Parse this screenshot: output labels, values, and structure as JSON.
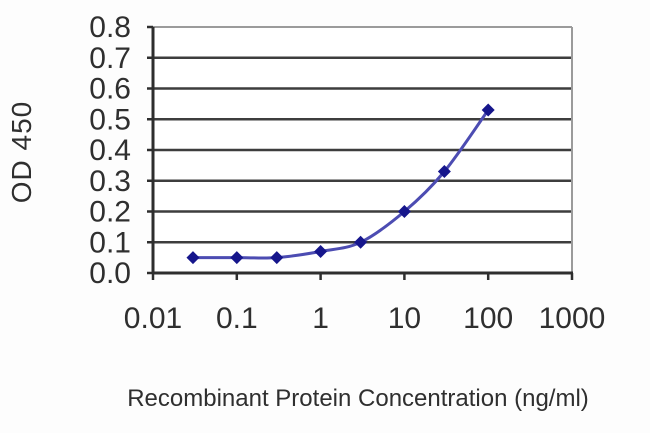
{
  "chart_data": {
    "type": "line",
    "title": "",
    "xlabel": "Recombinant Protein Concentration (ng/ml)",
    "ylabel": "OD 450",
    "x_scale": "log",
    "xlim": [
      0.01,
      1000
    ],
    "ylim": [
      0.0,
      0.8
    ],
    "x_tick_values": [
      0.01,
      0.1,
      1,
      10,
      100,
      1000
    ],
    "x_tick_labels": [
      "0.01",
      "0.1",
      "1",
      "10",
      "100",
      "1000"
    ],
    "y_tick_values": [
      0.0,
      0.1,
      0.2,
      0.3,
      0.4,
      0.5,
      0.6,
      0.7,
      0.8
    ],
    "y_tick_labels": [
      "0.0",
      "0.1",
      "0.2",
      "0.3",
      "0.4",
      "0.5",
      "0.6",
      "0.7",
      "0.8"
    ],
    "grid": "horizontal",
    "legend": "none",
    "series": [
      {
        "name": "OD 450",
        "marker": "diamond",
        "smooth": true,
        "points": [
          [
            0.03,
            0.05
          ],
          [
            0.1,
            0.05
          ],
          [
            0.3,
            0.05
          ],
          [
            1,
            0.07
          ],
          [
            3,
            0.1
          ],
          [
            10,
            0.2
          ],
          [
            30,
            0.33
          ],
          [
            100,
            0.53
          ]
        ]
      }
    ],
    "colors": {
      "background": "#fdfdfd",
      "plot_background": "#ffffff",
      "gridline": "#3d3d3d",
      "axis": "#2e2e2e",
      "plot_border": "#9b9b9b",
      "line": "#4c4cb2",
      "marker": "#16168c",
      "text": "#2f2f2f"
    }
  }
}
